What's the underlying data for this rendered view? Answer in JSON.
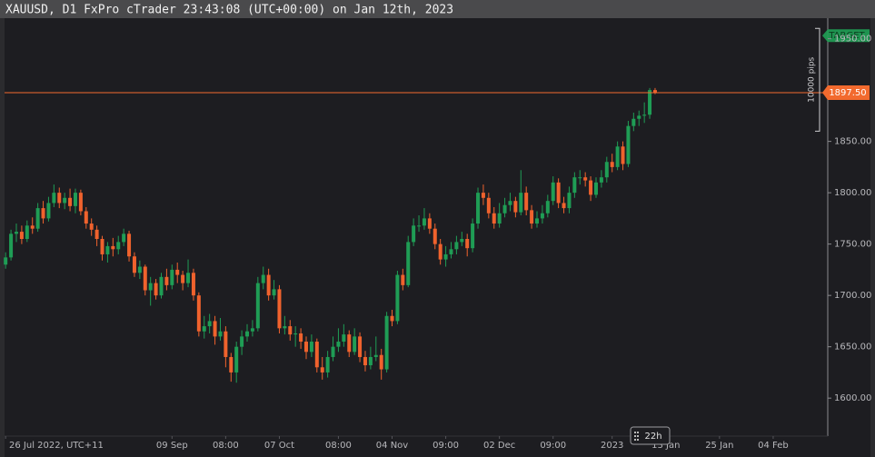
{
  "chart_data": {
    "type": "candlestick",
    "title": "XAUUSD, D1 FxPro cTrader 23:43:08 (UTC+00:00) on Jan 12th, 2023",
    "up_color": "#1f9d55",
    "down_color": "#f0622d",
    "open": [
      1730,
      1737,
      1760,
      1762,
      1755,
      1768,
      1765,
      1785,
      1775,
      1790,
      1800,
      1790,
      1795,
      1787,
      1800,
      1782,
      1770,
      1764,
      1755,
      1740,
      1748,
      1745,
      1752,
      1760,
      1738,
      1722,
      1728,
      1705,
      1712,
      1700,
      1718,
      1710,
      1725,
      1720,
      1712,
      1722,
      1700,
      1665,
      1670,
      1675,
      1660,
      1665,
      1640,
      1625,
      1650,
      1660,
      1665,
      1668,
      1712,
      1720,
      1700,
      1706,
      1668,
      1670,
      1662,
      1663,
      1655,
      1645,
      1655,
      1630,
      1625,
      1640,
      1650,
      1655,
      1662,
      1645,
      1660,
      1640,
      1632,
      1640,
      1642,
      1628,
      1680,
      1675,
      1720,
      1710,
      1752,
      1768,
      1768,
      1775,
      1765,
      1750,
      1735,
      1740,
      1745,
      1752,
      1755,
      1746,
      1770,
      1800,
      1795,
      1780,
      1770,
      1780,
      1788,
      1792,
      1781,
      1800,
      1783,
      1770,
      1775,
      1780,
      1792,
      1810,
      1790,
      1785,
      1800,
      1815,
      1815,
      1812,
      1798,
      1810,
      1815,
      1830,
      1825,
      1845,
      1828,
      1865,
      1872,
      1875,
      1876,
      1900
    ],
    "high": [
      1742,
      1764,
      1770,
      1768,
      1773,
      1776,
      1790,
      1792,
      1796,
      1808,
      1805,
      1800,
      1804,
      1804,
      1803,
      1786,
      1775,
      1768,
      1758,
      1752,
      1756,
      1758,
      1765,
      1763,
      1742,
      1734,
      1730,
      1718,
      1716,
      1722,
      1726,
      1730,
      1732,
      1724,
      1735,
      1726,
      1703,
      1680,
      1682,
      1680,
      1678,
      1670,
      1644,
      1655,
      1666,
      1672,
      1676,
      1718,
      1728,
      1726,
      1715,
      1710,
      1680,
      1676,
      1670,
      1668,
      1660,
      1662,
      1658,
      1640,
      1646,
      1660,
      1668,
      1672,
      1666,
      1668,
      1664,
      1646,
      1650,
      1660,
      1648,
      1684,
      1686,
      1724,
      1726,
      1758,
      1775,
      1778,
      1785,
      1780,
      1770,
      1755,
      1748,
      1752,
      1758,
      1762,
      1760,
      1775,
      1805,
      1808,
      1800,
      1786,
      1790,
      1795,
      1800,
      1796,
      1822,
      1806,
      1788,
      1782,
      1788,
      1798,
      1816,
      1814,
      1796,
      1806,
      1820,
      1822,
      1820,
      1816,
      1815,
      1822,
      1835,
      1838,
      1850,
      1850,
      1870,
      1878,
      1880,
      1888,
      1902,
      1902
    ],
    "low": [
      1726,
      1734,
      1752,
      1750,
      1752,
      1760,
      1762,
      1770,
      1772,
      1786,
      1785,
      1784,
      1782,
      1780,
      1778,
      1765,
      1758,
      1748,
      1734,
      1732,
      1738,
      1740,
      1748,
      1733,
      1718,
      1716,
      1700,
      1690,
      1696,
      1697,
      1705,
      1706,
      1712,
      1705,
      1708,
      1695,
      1660,
      1658,
      1663,
      1652,
      1656,
      1630,
      1616,
      1615,
      1642,
      1655,
      1660,
      1665,
      1706,
      1695,
      1696,
      1663,
      1662,
      1656,
      1650,
      1648,
      1638,
      1640,
      1625,
      1618,
      1620,
      1636,
      1645,
      1650,
      1640,
      1642,
      1635,
      1626,
      1628,
      1636,
      1618,
      1625,
      1670,
      1672,
      1705,
      1708,
      1748,
      1762,
      1764,
      1760,
      1745,
      1730,
      1728,
      1736,
      1740,
      1748,
      1738,
      1742,
      1765,
      1788,
      1775,
      1765,
      1766,
      1776,
      1782,
      1776,
      1778,
      1778,
      1765,
      1766,
      1770,
      1776,
      1788,
      1785,
      1780,
      1780,
      1795,
      1808,
      1806,
      1792,
      1795,
      1805,
      1810,
      1820,
      1822,
      1822,
      1825,
      1860,
      1865,
      1868,
      1872,
      1896
    ],
    "close": [
      1737,
      1760,
      1762,
      1755,
      1768,
      1765,
      1785,
      1775,
      1790,
      1800,
      1790,
      1795,
      1787,
      1800,
      1782,
      1770,
      1764,
      1755,
      1740,
      1748,
      1745,
      1752,
      1760,
      1738,
      1722,
      1728,
      1705,
      1712,
      1700,
      1718,
      1710,
      1725,
      1720,
      1712,
      1722,
      1700,
      1665,
      1670,
      1675,
      1660,
      1665,
      1640,
      1625,
      1650,
      1660,
      1665,
      1668,
      1712,
      1720,
      1700,
      1706,
      1668,
      1670,
      1662,
      1663,
      1655,
      1645,
      1655,
      1630,
      1625,
      1640,
      1650,
      1655,
      1662,
      1645,
      1660,
      1640,
      1632,
      1640,
      1642,
      1628,
      1680,
      1675,
      1720,
      1710,
      1752,
      1768,
      1768,
      1775,
      1765,
      1750,
      1735,
      1740,
      1745,
      1752,
      1755,
      1746,
      1770,
      1800,
      1795,
      1780,
      1770,
      1780,
      1788,
      1792,
      1781,
      1800,
      1783,
      1770,
      1775,
      1780,
      1792,
      1810,
      1790,
      1785,
      1800,
      1815,
      1815,
      1812,
      1798,
      1810,
      1815,
      1830,
      1825,
      1845,
      1828,
      1865,
      1872,
      1875,
      1876,
      1900,
      1897.5
    ],
    "xlim": [
      -0.2,
      153
    ],
    "xticks": [
      {
        "value": 0,
        "label": "26 Jul 2022, UTC+11"
      },
      {
        "value": 31,
        "label": "09 Sep"
      },
      {
        "value": 41,
        "label": "08:00"
      },
      {
        "value": 51,
        "label": "07 Oct"
      },
      {
        "value": 62,
        "label": "08:00"
      },
      {
        "value": 72,
        "label": "04 Nov"
      },
      {
        "value": 82,
        "label": "09:00"
      },
      {
        "value": 92,
        "label": "02 Dec"
      },
      {
        "value": 102,
        "label": "09:00"
      },
      {
        "value": 113,
        "label": "2023"
      },
      {
        "value": 123,
        "label": "13 Jan"
      },
      {
        "value": 133,
        "label": "25 Jan"
      },
      {
        "value": 143,
        "label": "04 Feb"
      }
    ],
    "ylim": [
      1563,
      1970
    ],
    "yticks": [
      {
        "value": 1600,
        "label": "1600.00"
      },
      {
        "value": 1650,
        "label": "1650.00"
      },
      {
        "value": 1700,
        "label": "1700.00"
      },
      {
        "value": 1750,
        "label": "1750.00"
      },
      {
        "value": 1800,
        "label": "1800.00"
      },
      {
        "value": 1850,
        "label": "1850.00"
      },
      {
        "value": 1950,
        "label": "1950.00"
      }
    ],
    "price_line": {
      "value": 1897.5,
      "label": "1897.50",
      "color": "#f26a2e"
    },
    "target": {
      "value": 1953,
      "label": "TARGET",
      "color": "#1f9d55"
    },
    "ruler": {
      "from": 1960,
      "to": 1860,
      "label": "10000 pips"
    },
    "countdown": "22h"
  }
}
